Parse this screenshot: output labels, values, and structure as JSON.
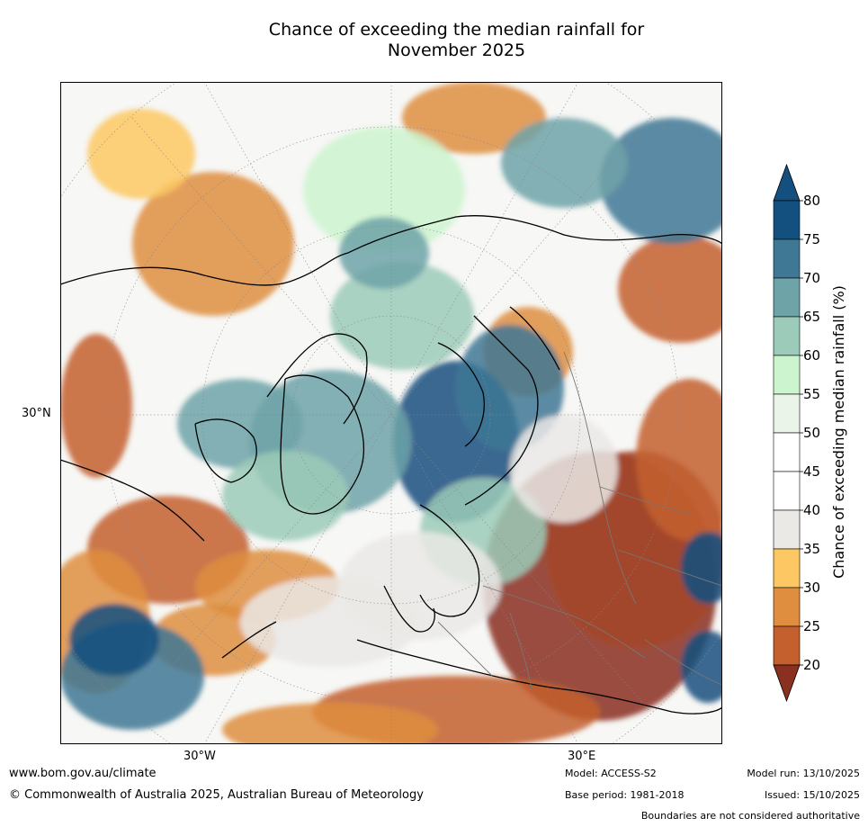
{
  "title": {
    "line1": "Chance of exceeding the median rainfall for",
    "line2": "November 2025"
  },
  "map": {
    "lat_label": "30°N",
    "lon_labels": [
      "30°W",
      "30°E"
    ]
  },
  "colorbar": {
    "label": "Chance of exceeding median rainfall (%)",
    "ticks": [
      "80",
      "75",
      "70",
      "65",
      "60",
      "55",
      "50",
      "45",
      "40",
      "35",
      "30",
      "25",
      "20"
    ],
    "colors": [
      "#14507f",
      "#3f7895",
      "#6ea3a8",
      "#9ccbb9",
      "#ccf5cf",
      "#eaf4e9",
      "#ffffff",
      "#ffffff",
      "#ebe9e6",
      "#fdc863",
      "#de8e3e",
      "#c45f2e",
      "#a5472a",
      "#8a3020"
    ],
    "min_color": "#8a3020",
    "max_color": "#14507f"
  },
  "footer": {
    "url": "www.bom.gov.au/climate",
    "copyright": "© Commonwealth of Australia 2025, Australian Bureau of Meteorology",
    "model": "Model: ACCESS-S2",
    "base_period": "Base period: 1981-2018",
    "model_run": "Model run: 13/10/2025",
    "issued": "Issued: 15/10/2025",
    "disclaimer": "Boundaries are not considered authoritative"
  }
}
